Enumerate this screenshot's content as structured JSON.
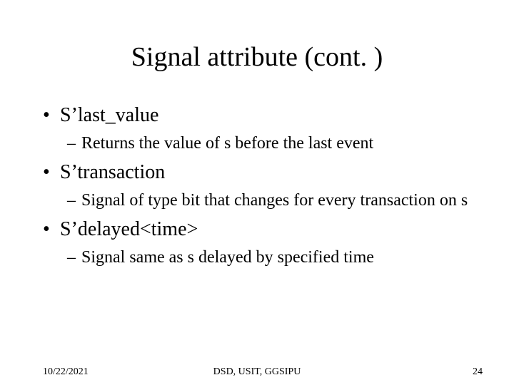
{
  "title": "Signal attribute (cont. )",
  "bullets": [
    {
      "level": 1,
      "text": "S’last_value"
    },
    {
      "level": 2,
      "text": "Returns the value of s before the last event"
    },
    {
      "level": 1,
      "text": "S’transaction"
    },
    {
      "level": 2,
      "text": "Signal of type bit that changes for every transaction on s"
    },
    {
      "level": 1,
      "text": "S’delayed<time>"
    },
    {
      "level": 2,
      "text": "Signal same as s delayed by specified time"
    }
  ],
  "footer": {
    "date": "10/22/2021",
    "center": "DSD, USIT, GGSIPU",
    "page": "24"
  },
  "style": {
    "background": "#ffffff",
    "text_color": "#000000",
    "title_fontsize": 38,
    "bullet1_fontsize": 28,
    "bullet2_fontsize": 24,
    "footer_fontsize": 14,
    "font_family": "Times New Roman"
  }
}
